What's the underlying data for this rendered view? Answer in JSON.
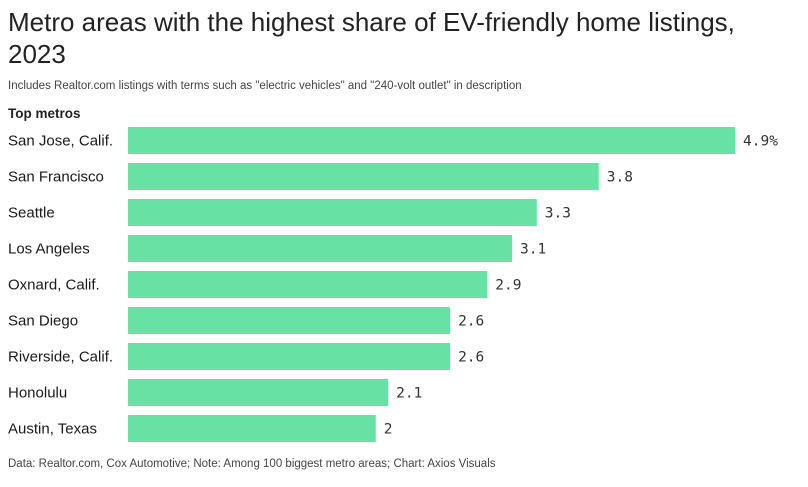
{
  "title": "Metro areas with the highest share of EV-friendly home listings, 2023",
  "subtitle": "Includes Realtor.com listings with terms such as \"electric vehicles\" and \"240-volt outlet\" in description",
  "column_header": "Top metros",
  "footer": "Data: Realtor.com, Cox Automotive; Note: Among 100 biggest metro areas; Chart: Axios Visuals",
  "colors": {
    "bar": "#67e2a4"
  },
  "chart_data": {
    "type": "bar",
    "orientation": "horizontal",
    "categories": [
      "San Jose, Calif.",
      "San Francisco",
      "Seattle",
      "Los Angeles",
      "Oxnard, Calif.",
      "San Diego",
      "Riverside, Calif.",
      "Honolulu",
      "Austin, Texas"
    ],
    "values": [
      4.9,
      3.8,
      3.3,
      3.1,
      2.9,
      2.6,
      2.6,
      2.1,
      2
    ],
    "value_labels": [
      "4.9%",
      "3.8",
      "3.3",
      "3.1",
      "2.9",
      "2.6",
      "2.6",
      "2.1",
      "2"
    ],
    "xlim": [
      0,
      4.9
    ],
    "grid": false
  }
}
